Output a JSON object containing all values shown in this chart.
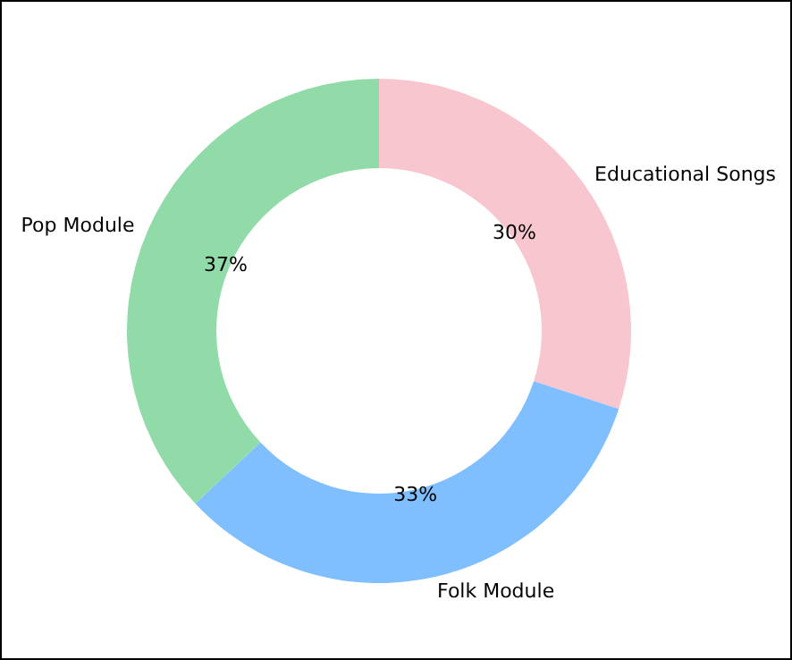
{
  "chart_data": {
    "type": "donut",
    "categories": [
      "Educational Songs",
      "Folk Module",
      "Pop Module"
    ],
    "values": [
      30,
      33,
      37
    ],
    "colors": [
      "#f7c6ce",
      "#80bfff",
      "#90dba8"
    ],
    "value_labels": [
      "30%",
      "33%",
      "37%"
    ],
    "legend": false
  }
}
